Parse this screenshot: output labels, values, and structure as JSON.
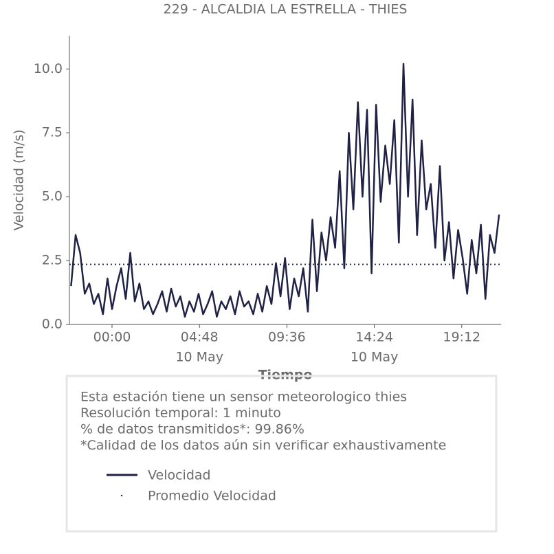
{
  "chart_data": {
    "type": "line",
    "title": "229 - ALCALDIA LA ESTRELLA - THIES",
    "x_label": "Tiempo",
    "y_label": "Velocidad (m/s)",
    "xlim": [
      -2.34,
      21.36
    ],
    "xticks": [
      {
        "value": 0,
        "label": "00:00"
      },
      {
        "value": 4.8,
        "label": "04:48"
      },
      {
        "value": 9.6,
        "label": "09:36"
      },
      {
        "value": 14.4,
        "label": "14:24"
      },
      {
        "value": 19.2,
        "label": "19:12"
      }
    ],
    "xtick_dates": [
      {
        "value": 4.8,
        "label": "10 May"
      },
      {
        "value": 14.4,
        "label": "10 May"
      }
    ],
    "ylim": [
      0,
      11.3
    ],
    "yticks": [
      {
        "value": 0,
        "label": "0.0"
      },
      {
        "value": 2.5,
        "label": "2.5"
      },
      {
        "value": 5,
        "label": "5.0"
      },
      {
        "value": 7.5,
        "label": "7.5"
      },
      {
        "value": 10,
        "label": "10.0"
      }
    ],
    "x": [
      -2.25,
      -2,
      -1.75,
      -1.5,
      -1.25,
      -1,
      -0.75,
      -0.5,
      -0.25,
      0,
      0.25,
      0.5,
      0.75,
      1,
      1.25,
      1.5,
      1.75,
      2,
      2.25,
      2.5,
      2.75,
      3,
      3.25,
      3.5,
      3.75,
      4,
      4.25,
      4.5,
      4.75,
      5,
      5.25,
      5.5,
      5.75,
      6,
      6.25,
      6.5,
      6.75,
      7,
      7.25,
      7.5,
      7.75,
      8,
      8.25,
      8.5,
      8.75,
      9,
      9.25,
      9.5,
      9.75,
      10,
      10.25,
      10.5,
      10.75,
      11,
      11.25,
      11.5,
      11.75,
      12,
      12.25,
      12.5,
      12.75,
      13,
      13.25,
      13.5,
      13.75,
      14,
      14.25,
      14.5,
      14.75,
      15,
      15.25,
      15.5,
      15.75,
      16,
      16.25,
      16.5,
      16.75,
      17,
      17.25,
      17.5,
      17.75,
      18,
      18.25,
      18.5,
      18.75,
      19,
      19.25,
      19.5,
      19.75,
      20,
      20.25,
      20.5,
      20.75,
      21,
      21.25
    ],
    "series": [
      {
        "name": "Velocidad",
        "color": "#1f2145",
        "values": [
          1.5,
          3.5,
          2.8,
          1.2,
          1.6,
          0.8,
          1.2,
          0.4,
          1.8,
          0.6,
          1.5,
          2.2,
          1.0,
          2.8,
          0.9,
          1.6,
          0.6,
          0.9,
          0.4,
          0.8,
          1.3,
          0.5,
          1.4,
          0.7,
          1.1,
          0.3,
          0.9,
          0.5,
          1.2,
          0.4,
          0.8,
          1.3,
          0.3,
          0.9,
          0.6,
          1.1,
          0.4,
          1.3,
          0.7,
          0.9,
          0.4,
          1.2,
          0.5,
          1.5,
          0.8,
          2.4,
          1.1,
          2.6,
          0.6,
          1.8,
          1.1,
          2.2,
          0.5,
          4.1,
          1.3,
          3.6,
          2.5,
          4.2,
          3.0,
          6.0,
          2.2,
          7.5,
          4.5,
          8.7,
          5.0,
          8.4,
          2.0,
          8.6,
          4.8,
          7.0,
          5.5,
          8.0,
          3.2,
          10.2,
          5.0,
          8.8,
          3.5,
          7.2,
          4.5,
          5.5,
          3.0,
          6.2,
          2.5,
          4.0,
          1.8,
          3.7,
          2.6,
          1.2,
          3.3,
          2.0,
          3.9,
          1.0,
          3.5,
          2.8,
          4.3
        ]
      },
      {
        "name": "Promedio Velocidad",
        "color": "#1f2145",
        "value": 2.35
      }
    ],
    "info": [
      "Esta estación tiene un sensor meteorologico thies",
      "Resolución temporal: 1 minuto",
      "% de datos transmitidos*: 99.86%",
      "*Calidad de los datos aún sin verificar exhaustivamente"
    ]
  }
}
